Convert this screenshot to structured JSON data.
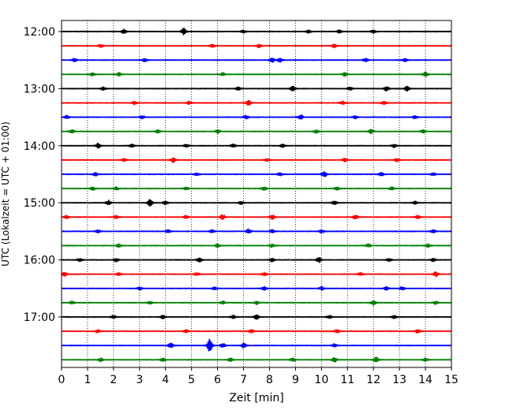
{
  "chart_data": {
    "type": "line",
    "title": "",
    "xlabel": "Zeit  [min]",
    "ylabel": "UTC (Lokalzeit = UTC + 01:00)",
    "xlim": [
      0,
      15
    ],
    "xticks": [
      0,
      1,
      2,
      3,
      4,
      5,
      6,
      7,
      8,
      9,
      10,
      11,
      12,
      13,
      14,
      15
    ],
    "xtick_labels": [
      "0",
      "1",
      "2",
      "3",
      "4",
      "5",
      "6",
      "7",
      "8",
      "9",
      "10",
      "11",
      "12",
      "13",
      "14",
      "15"
    ],
    "ytick_labels": [
      "12:00",
      "13:00",
      "14:00",
      "15:00",
      "16:00",
      "17:00"
    ],
    "ytick_rows": [
      0,
      4,
      8,
      12,
      16,
      20
    ],
    "grid": "vertical-dotted",
    "row_interval_min": 15,
    "colors": [
      "#000000",
      "#ff0000",
      "#0000ff",
      "#008000"
    ],
    "rows": [
      {
        "start": "12:00",
        "color": "#000000",
        "events": [
          [
            2.4,
            3
          ],
          [
            4.7,
            4
          ],
          [
            7.0,
            2
          ],
          [
            9.5,
            2
          ],
          [
            10.7,
            2
          ],
          [
            12.0,
            2
          ]
        ]
      },
      {
        "start": "12:15",
        "color": "#ff0000",
        "events": [
          [
            1.5,
            2
          ],
          [
            5.8,
            2
          ],
          [
            7.6,
            2
          ],
          [
            10.5,
            2
          ]
        ]
      },
      {
        "start": "12:30",
        "color": "#0000ff",
        "events": [
          [
            0.5,
            2
          ],
          [
            3.2,
            2
          ],
          [
            8.1,
            3
          ],
          [
            8.4,
            3
          ],
          [
            11.7,
            2
          ],
          [
            13.2,
            2
          ]
        ]
      },
      {
        "start": "12:45",
        "color": "#008000",
        "events": [
          [
            1.2,
            2
          ],
          [
            2.2,
            2
          ],
          [
            6.2,
            2
          ],
          [
            10.9,
            2
          ],
          [
            14.0,
            3
          ]
        ]
      },
      {
        "start": "13:00",
        "color": "#000000",
        "events": [
          [
            1.6,
            2
          ],
          [
            6.8,
            2
          ],
          [
            8.9,
            3
          ],
          [
            11.1,
            2
          ],
          [
            12.5,
            3
          ],
          [
            13.3,
            3
          ]
        ]
      },
      {
        "start": "13:15",
        "color": "#ff0000",
        "events": [
          [
            2.8,
            2
          ],
          [
            4.9,
            2
          ],
          [
            7.2,
            3
          ],
          [
            10.8,
            2
          ],
          [
            12.4,
            2
          ]
        ]
      },
      {
        "start": "13:30",
        "color": "#0000ff",
        "events": [
          [
            0.2,
            2
          ],
          [
            3.1,
            2
          ],
          [
            7.1,
            2
          ],
          [
            9.2,
            3
          ],
          [
            11.3,
            2
          ],
          [
            13.6,
            2
          ]
        ]
      },
      {
        "start": "13:45",
        "color": "#008000",
        "events": [
          [
            0.4,
            2
          ],
          [
            3.7,
            2
          ],
          [
            6.0,
            2
          ],
          [
            9.8,
            2
          ],
          [
            11.9,
            3
          ],
          [
            13.9,
            2
          ]
        ]
      },
      {
        "start": "14:00",
        "color": "#000000",
        "events": [
          [
            1.4,
            3
          ],
          [
            2.7,
            2
          ],
          [
            4.8,
            2
          ],
          [
            6.6,
            2
          ],
          [
            8.5,
            2
          ],
          [
            12.8,
            2
          ]
        ]
      },
      {
        "start": "14:15",
        "color": "#ff0000",
        "events": [
          [
            2.4,
            2
          ],
          [
            4.3,
            3
          ],
          [
            7.9,
            2
          ],
          [
            10.9,
            2
          ],
          [
            12.9,
            2
          ]
        ]
      },
      {
        "start": "14:30",
        "color": "#0000ff",
        "events": [
          [
            1.3,
            2
          ],
          [
            5.2,
            2
          ],
          [
            8.4,
            2
          ],
          [
            10.1,
            4
          ],
          [
            12.3,
            2
          ],
          [
            14.3,
            2
          ]
        ]
      },
      {
        "start": "14:45",
        "color": "#008000",
        "events": [
          [
            1.2,
            2
          ],
          [
            2.1,
            2
          ],
          [
            4.8,
            2
          ],
          [
            7.8,
            2
          ],
          [
            10.6,
            2
          ],
          [
            12.7,
            2
          ]
        ]
      },
      {
        "start": "15:00",
        "color": "#000000",
        "events": [
          [
            1.8,
            3
          ],
          [
            3.4,
            4
          ],
          [
            4.0,
            2
          ],
          [
            6.9,
            2
          ],
          [
            10.5,
            2
          ],
          [
            13.6,
            2
          ]
        ]
      },
      {
        "start": "15:15",
        "color": "#ff0000",
        "events": [
          [
            0.2,
            2
          ],
          [
            2.1,
            2
          ],
          [
            4.8,
            2
          ],
          [
            6.2,
            3
          ],
          [
            8.1,
            3
          ],
          [
            11.3,
            3
          ],
          [
            13.7,
            2
          ]
        ]
      },
      {
        "start": "15:30",
        "color": "#0000ff",
        "events": [
          [
            1.4,
            2
          ],
          [
            4.1,
            2
          ],
          [
            5.8,
            2
          ],
          [
            7.2,
            3
          ],
          [
            8.1,
            2
          ],
          [
            10.0,
            2
          ],
          [
            14.3,
            2
          ]
        ]
      },
      {
        "start": "15:45",
        "color": "#008000",
        "events": [
          [
            2.2,
            2
          ],
          [
            6.0,
            2
          ],
          [
            8.1,
            2
          ],
          [
            11.8,
            2
          ],
          [
            14.1,
            2
          ]
        ]
      },
      {
        "start": "16:00",
        "color": "#000000",
        "events": [
          [
            0.7,
            2
          ],
          [
            2.1,
            2
          ],
          [
            5.3,
            3
          ],
          [
            8.1,
            2
          ],
          [
            9.9,
            3
          ],
          [
            12.6,
            2
          ],
          [
            14.3,
            2
          ]
        ]
      },
      {
        "start": "16:15",
        "color": "#ff0000",
        "events": [
          [
            0.1,
            3
          ],
          [
            2.2,
            2
          ],
          [
            5.2,
            2
          ],
          [
            7.8,
            2
          ],
          [
            11.5,
            2
          ],
          [
            14.4,
            3
          ]
        ]
      },
      {
        "start": "16:30",
        "color": "#0000ff",
        "events": [
          [
            3.0,
            2
          ],
          [
            5.9,
            2
          ],
          [
            7.8,
            2
          ],
          [
            10.0,
            2
          ],
          [
            12.5,
            2
          ],
          [
            13.1,
            2
          ]
        ]
      },
      {
        "start": "16:45",
        "color": "#008000",
        "events": [
          [
            0.4,
            2
          ],
          [
            3.4,
            2
          ],
          [
            6.2,
            2
          ],
          [
            7.5,
            2
          ],
          [
            12.0,
            3
          ],
          [
            14.4,
            2
          ]
        ]
      },
      {
        "start": "17:00",
        "color": "#000000",
        "events": [
          [
            2.0,
            2
          ],
          [
            3.9,
            2
          ],
          [
            6.6,
            2
          ],
          [
            7.5,
            3
          ],
          [
            10.3,
            2
          ],
          [
            12.8,
            2
          ]
        ]
      },
      {
        "start": "17:15",
        "color": "#ff0000",
        "events": [
          [
            1.4,
            2
          ],
          [
            4.8,
            2
          ],
          [
            7.3,
            2
          ],
          [
            10.6,
            2
          ],
          [
            13.7,
            2
          ]
        ]
      },
      {
        "start": "17:30",
        "color": "#0000ff",
        "events": [
          [
            4.2,
            3
          ],
          [
            5.7,
            8
          ],
          [
            6.2,
            3
          ],
          [
            7.0,
            3
          ],
          [
            10.5,
            2
          ]
        ]
      },
      {
        "start": "17:45",
        "color": "#008000",
        "events": [
          [
            1.5,
            2
          ],
          [
            3.9,
            2
          ],
          [
            6.5,
            2
          ],
          [
            8.9,
            2
          ],
          [
            10.5,
            3
          ],
          [
            12.1,
            3
          ],
          [
            14.0,
            2
          ]
        ]
      }
    ]
  }
}
